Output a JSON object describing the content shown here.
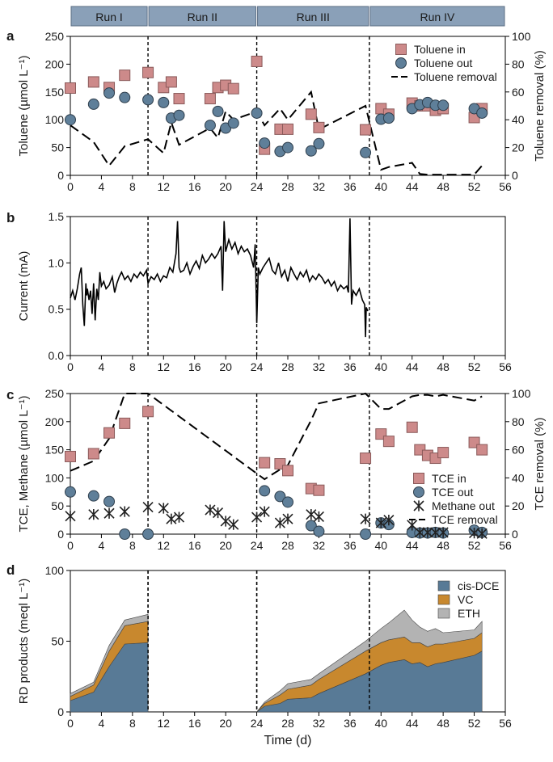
{
  "runs": [
    {
      "label": "Run I",
      "start": 0,
      "end": 10
    },
    {
      "label": "Run II",
      "start": 10,
      "end": 24
    },
    {
      "label": "Run III",
      "start": 24,
      "end": 38.5
    },
    {
      "label": "Run IV",
      "start": 38.5,
      "end": 56
    }
  ],
  "colors": {
    "run_header_fill": "#8aa0b8",
    "run_header_stroke": "#5c6f85",
    "pink_square": "#cd8a8a",
    "blue_circle": "#5f7f99",
    "cis_dce": "#587a96",
    "vc": "#c8882e",
    "eth": "#b3b3b3",
    "line": "#000000"
  },
  "xaxis": {
    "label": "Time (d)",
    "ticks": [
      0,
      4,
      8,
      12,
      16,
      20,
      24,
      28,
      32,
      36,
      40,
      44,
      48,
      52,
      56
    ],
    "range": [
      0,
      56
    ]
  },
  "run_dividers": [
    10,
    24,
    38.5
  ],
  "chart_data": [
    {
      "panel": "a",
      "type": "scatter",
      "ylabel": "Toluene (µmol L⁻¹)",
      "ylabel_right": "Toluene removal (%)",
      "ylim": [
        0,
        250
      ],
      "yticks": [
        0,
        50,
        100,
        150,
        200,
        250
      ],
      "ylim_right": [
        0,
        100
      ],
      "yticks_right": [
        0,
        20,
        40,
        60,
        80,
        100
      ],
      "legend": {
        "position": "top-right",
        "entries": [
          "Toluene in",
          "Toluene out",
          "Toluene removal"
        ]
      },
      "series": [
        {
          "name": "Toluene in",
          "marker": "square",
          "x": [
            0,
            3,
            5,
            7,
            10,
            12,
            13,
            14,
            18,
            19,
            20,
            21,
            24,
            25,
            27,
            28,
            31,
            32,
            38,
            40,
            41,
            44,
            45,
            46,
            47,
            48,
            52,
            53
          ],
          "y": [
            157,
            168,
            158,
            180,
            185,
            158,
            168,
            138,
            138,
            158,
            162,
            156,
            205,
            47,
            83,
            83,
            110,
            86,
            82,
            120,
            110,
            130,
            125,
            125,
            117,
            120,
            104,
            120
          ]
        },
        {
          "name": "Toluene out",
          "marker": "circle",
          "x": [
            0,
            3,
            5,
            7,
            10,
            12,
            13,
            14,
            18,
            19,
            20,
            21,
            24,
            25,
            27,
            28,
            31,
            32,
            38,
            40,
            41,
            44,
            45,
            46,
            47,
            48,
            52,
            53
          ],
          "y": [
            100,
            128,
            148,
            140,
            136,
            131,
            103,
            108,
            90,
            115,
            85,
            94,
            112,
            58,
            43,
            50,
            44,
            57,
            41,
            101,
            103,
            120,
            127,
            131,
            126,
            126,
            120,
            112
          ]
        },
        {
          "name": "Toluene removal",
          "axis": "right",
          "style": "dashed",
          "x": [
            0,
            3,
            5,
            7,
            10,
            12,
            13,
            14,
            18,
            19,
            20,
            21,
            24,
            25,
            27,
            28,
            31,
            32,
            38,
            40,
            41,
            44,
            45,
            46,
            47,
            48,
            52,
            53
          ],
          "y": [
            36,
            24,
            7,
            21,
            26,
            16,
            38,
            22,
            34,
            27,
            46,
            40,
            46,
            36,
            48,
            40,
            60,
            33,
            50,
            4,
            6,
            9,
            1,
            0.5,
            0.5,
            0.5,
            0.5,
            7
          ]
        }
      ]
    },
    {
      "panel": "b",
      "type": "line",
      "ylabel": "Current (mA)",
      "ylim": [
        0,
        1.5
      ],
      "yticks": [
        0.0,
        0.5,
        1.0,
        1.5
      ],
      "series": [
        {
          "name": "Current",
          "style": "solid",
          "x": [
            0,
            0.3,
            0.6,
            0.9,
            1.2,
            1.4,
            1.6,
            1.8,
            2.0,
            2.1,
            2.2,
            2.4,
            2.6,
            2.8,
            3.0,
            3.2,
            3.4,
            3.6,
            3.8,
            4.0,
            4.3,
            4.6,
            5.0,
            5.4,
            5.7,
            6.0,
            6.3,
            6.6,
            7.0,
            7.4,
            7.8,
            8.2,
            8.6,
            9.0,
            9.4,
            9.8,
            10.0,
            10.4,
            10.8,
            11.2,
            11.6,
            12.0,
            12.4,
            12.8,
            13.2,
            13.6,
            13.8,
            14.0,
            14.2,
            14.6,
            15.0,
            15.4,
            15.8,
            16.2,
            16.6,
            17.0,
            17.4,
            17.8,
            18.2,
            18.6,
            19.0,
            19.4,
            19.6,
            19.8,
            20.0,
            20.4,
            20.8,
            21.2,
            21.6,
            22.0,
            22.4,
            22.8,
            23.2,
            23.6,
            23.8,
            24.0,
            24.2,
            24.4,
            24.8,
            25.2,
            25.6,
            26.0,
            26.4,
            26.8,
            27.2,
            27.6,
            28.0,
            28.4,
            28.8,
            29.2,
            29.6,
            30.0,
            30.4,
            30.8,
            31.2,
            31.6,
            32.0,
            32.4,
            32.8,
            33.2,
            33.6,
            34.0,
            34.4,
            34.8,
            35.2,
            35.6,
            35.8,
            36.0,
            36.2,
            36.4,
            36.8,
            37.2,
            37.6,
            37.9,
            38.0,
            38.1,
            38.3
          ],
          "y": [
            0.62,
            0.7,
            0.6,
            0.72,
            0.88,
            0.95,
            0.55,
            0.32,
            0.78,
            0.65,
            0.72,
            0.6,
            0.7,
            0.45,
            0.78,
            0.38,
            0.72,
            0.6,
            0.9,
            0.75,
            0.8,
            0.72,
            0.76,
            0.85,
            0.68,
            0.78,
            0.85,
            0.9,
            0.82,
            0.86,
            0.8,
            0.88,
            0.84,
            0.9,
            0.86,
            0.92,
            0.78,
            0.85,
            0.82,
            0.88,
            0.8,
            0.86,
            0.84,
            0.95,
            0.9,
            1.1,
            1.45,
            0.95,
            0.9,
            0.92,
            1.0,
            0.88,
            0.96,
            1.02,
            0.94,
            1.08,
            1.0,
            1.04,
            1.1,
            1.05,
            1.1,
            1.18,
            0.7,
            1.45,
            1.12,
            1.25,
            1.15,
            1.22,
            1.1,
            1.18,
            1.12,
            1.15,
            1.08,
            0.95,
            1.2,
            0.35,
            0.95,
            0.88,
            0.95,
            1.0,
            1.05,
            0.92,
            0.88,
            1.0,
            0.85,
            0.92,
            0.8,
            0.95,
            0.88,
            0.82,
            0.9,
            0.85,
            0.92,
            0.8,
            0.86,
            0.82,
            0.88,
            0.84,
            0.78,
            0.82,
            0.75,
            0.8,
            0.7,
            0.76,
            0.72,
            0.75,
            0.68,
            1.48,
            0.55,
            0.7,
            0.65,
            0.72,
            0.6,
            0.55,
            0.2,
            0.52,
            0.48
          ]
        }
      ]
    },
    {
      "panel": "c",
      "type": "scatter",
      "ylabel": "TCE, Methane (µmol L⁻¹)",
      "ylabel_right": "TCE removal (%)",
      "ylim": [
        0,
        250
      ],
      "yticks": [
        0,
        50,
        100,
        150,
        200,
        250
      ],
      "ylim_right": [
        0,
        100
      ],
      "yticks_right": [
        0,
        20,
        40,
        60,
        80,
        100
      ],
      "legend": {
        "position": "bottom-right",
        "entries": [
          "TCE in",
          "TCE out",
          "Methane out",
          "TCE removal"
        ]
      },
      "series": [
        {
          "name": "TCE in",
          "marker": "square",
          "x": [
            0,
            3,
            5,
            7,
            10,
            25,
            27,
            28,
            31,
            32,
            38,
            40,
            41,
            44,
            45,
            46,
            47,
            48,
            52,
            53
          ],
          "y": [
            138,
            143,
            180,
            197,
            218,
            127,
            125,
            113,
            81,
            78,
            135,
            178,
            165,
            190,
            150,
            140,
            135,
            145,
            163,
            150
          ]
        },
        {
          "name": "TCE out",
          "marker": "circle",
          "x": [
            0,
            3,
            5,
            7,
            10,
            25,
            27,
            28,
            31,
            32,
            38,
            40,
            41,
            44,
            45,
            46,
            47,
            48,
            52,
            53
          ],
          "y": [
            75,
            68,
            58,
            0,
            0,
            77,
            67,
            57,
            15,
            5,
            0,
            20,
            17,
            3,
            2,
            2,
            3,
            2,
            7,
            3
          ]
        },
        {
          "name": "Methane out",
          "marker": "star",
          "x": [
            0,
            3,
            5,
            7,
            10,
            12,
            13,
            14,
            18,
            19,
            20,
            21,
            24,
            25,
            27,
            28,
            31,
            32,
            38,
            40,
            41,
            44,
            45,
            46,
            47,
            48,
            52,
            53
          ],
          "y": [
            32,
            35,
            37,
            40,
            48,
            46,
            27,
            30,
            43,
            38,
            23,
            17,
            30,
            40,
            20,
            27,
            35,
            31,
            27,
            20,
            25,
            16,
            3,
            3,
            3,
            3,
            2,
            1
          ]
        },
        {
          "name": "TCE removal",
          "axis": "right",
          "style": "dashed",
          "x": [
            0,
            3,
            5,
            7,
            10,
            25,
            27,
            28,
            31,
            32,
            38,
            40,
            41,
            44,
            45,
            46,
            47,
            48,
            52,
            53
          ],
          "y": [
            45,
            52,
            68,
            100,
            100,
            39,
            46,
            49,
            81,
            93,
            100,
            89,
            89,
            98,
            99,
            99,
            98,
            99,
            95,
            98
          ]
        }
      ]
    },
    {
      "panel": "d",
      "type": "area",
      "ylabel": "RD products (meql L⁻¹)",
      "ylim": [
        0,
        100
      ],
      "yticks": [
        0,
        50,
        100
      ],
      "legend": {
        "position": "top-right",
        "entries": [
          "cis-DCE",
          "VC",
          "ETH"
        ]
      },
      "segments": [
        {
          "x": [
            0,
            3,
            5,
            7,
            10
          ],
          "series": [
            {
              "name": "cis-DCE",
              "values": [
                8,
                14,
                32,
                48,
                49
              ]
            },
            {
              "name": "VC",
              "values": [
                3,
                5,
                11,
                13,
                15
              ]
            },
            {
              "name": "ETH",
              "values": [
                2,
                2,
                4,
                4,
                5
              ]
            }
          ]
        },
        {
          "x": [
            24,
            25,
            27,
            28,
            31,
            32,
            38,
            40,
            41,
            43,
            44,
            45,
            46,
            47,
            48,
            52,
            53
          ],
          "series": [
            {
              "name": "cis-DCE",
              "values": [
                0,
                4,
                6,
                9,
                10,
                13,
                27,
                33,
                35,
                37,
                34,
                35,
                32,
                34,
                35,
                40,
                43
              ]
            },
            {
              "name": "VC",
              "values": [
                0,
                2,
                6,
                7,
                9,
                10,
                16,
                16,
                16,
                16,
                15,
                14,
                14,
                14,
                13,
                12,
                13
              ]
            },
            {
              "name": "ETH",
              "values": [
                0,
                1,
                3,
                4,
                4,
                4,
                7,
                10,
                12,
                19,
                16,
                11,
                11,
                11,
                8,
                6,
                8
              ]
            }
          ]
        }
      ]
    }
  ]
}
